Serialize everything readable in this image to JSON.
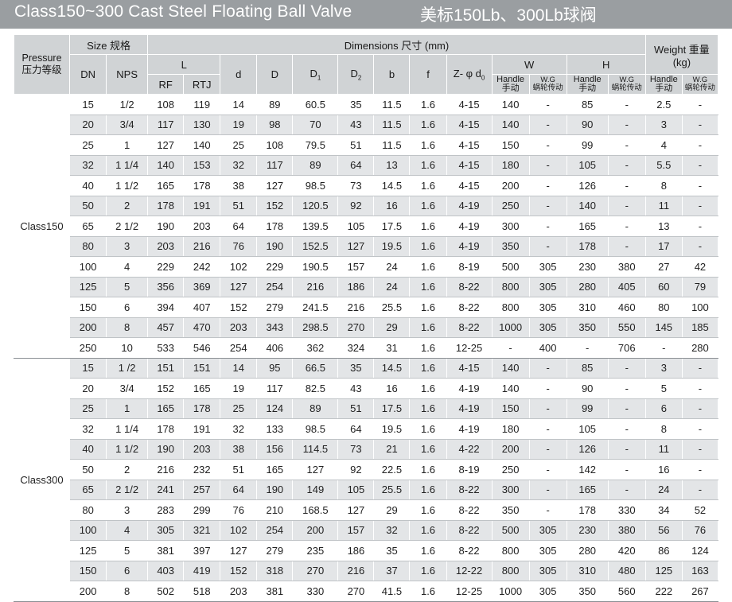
{
  "title": {
    "en": "Class150~300 Cast Steel Floating Ball Valve",
    "cn": "美标150Lb、300Lb球阀"
  },
  "headers": {
    "pressure_en": "Pressure",
    "pressure_cn": "压力等级",
    "size": "Size 规格",
    "dimensions": "Dimensions 尺寸 (mm)",
    "weight": "Weight 重量",
    "weight_unit": "(kg)",
    "dn": "DN",
    "nps": "NPS",
    "L": "L",
    "d": "d",
    "D": "D",
    "D1": "D",
    "D1_sub": "1",
    "D2": "D",
    "D2_sub": "2",
    "b": "b",
    "f": "f",
    "zphi": "Z- φ  d",
    "zphi_sub": "0",
    "W": "W",
    "H": "H",
    "rf": "RF",
    "rtj": "RTJ",
    "handle_en": "Handle",
    "handle_cn": "手动",
    "wg_en": "W.G",
    "wg_cn": "蜗轮传动"
  },
  "groups": [
    {
      "label": "Class150",
      "rows": [
        [
          "15",
          "1/2",
          "108",
          "119",
          "14",
          "89",
          "60.5",
          "35",
          "11.5",
          "1.6",
          "4-15",
          "140",
          "-",
          "85",
          "-",
          "2.5",
          "-"
        ],
        [
          "20",
          "3/4",
          "117",
          "130",
          "19",
          "98",
          "70",
          "43",
          "11.5",
          "1.6",
          "4-15",
          "140",
          "-",
          "90",
          "-",
          "3",
          "-"
        ],
        [
          "25",
          "1",
          "127",
          "140",
          "25",
          "108",
          "79.5",
          "51",
          "11.5",
          "1.6",
          "4-15",
          "150",
          "-",
          "99",
          "-",
          "4",
          "-"
        ],
        [
          "32",
          "1  1/4",
          "140",
          "153",
          "32",
          "117",
          "89",
          "64",
          "13",
          "1.6",
          "4-15",
          "180",
          "-",
          "105",
          "-",
          "5.5",
          "-"
        ],
        [
          "40",
          "1  1/2",
          "165",
          "178",
          "38",
          "127",
          "98.5",
          "73",
          "14.5",
          "1.6",
          "4-15",
          "200",
          "-",
          "126",
          "-",
          "8",
          "-"
        ],
        [
          "50",
          "2",
          "178",
          "191",
          "51",
          "152",
          "120.5",
          "92",
          "16",
          "1.6",
          "4-19",
          "250",
          "-",
          "140",
          "-",
          "11",
          "-"
        ],
        [
          "65",
          "2  1/2",
          "190",
          "203",
          "64",
          "178",
          "139.5",
          "105",
          "17.5",
          "1.6",
          "4-19",
          "300",
          "-",
          "165",
          "-",
          "13",
          "-"
        ],
        [
          "80",
          "3",
          "203",
          "216",
          "76",
          "190",
          "152.5",
          "127",
          "19.5",
          "1.6",
          "4-19",
          "350",
          "-",
          "178",
          "-",
          "17",
          "-"
        ],
        [
          "100",
          "4",
          "229",
          "242",
          "102",
          "229",
          "190.5",
          "157",
          "24",
          "1.6",
          "8-19",
          "500",
          "305",
          "230",
          "380",
          "27",
          "42"
        ],
        [
          "125",
          "5",
          "356",
          "369",
          "127",
          "254",
          "216",
          "186",
          "24",
          "1.6",
          "8-22",
          "800",
          "305",
          "280",
          "405",
          "60",
          "79"
        ],
        [
          "150",
          "6",
          "394",
          "407",
          "152",
          "279",
          "241.5",
          "216",
          "25.5",
          "1.6",
          "8-22",
          "800",
          "305",
          "310",
          "460",
          "80",
          "100"
        ],
        [
          "200",
          "8",
          "457",
          "470",
          "203",
          "343",
          "298.5",
          "270",
          "29",
          "1.6",
          "8-22",
          "1000",
          "305",
          "350",
          "550",
          "145",
          "185"
        ],
        [
          "250",
          "10",
          "533",
          "546",
          "254",
          "406",
          "362",
          "324",
          "31",
          "1.6",
          "12-25",
          "-",
          "400",
          "-",
          "706",
          "-",
          "280"
        ]
      ]
    },
    {
      "label": "Class300",
      "rows": [
        [
          "15",
          "1 /2",
          "151",
          "151",
          "14",
          "95",
          "66.5",
          "35",
          "14.5",
          "1.6",
          "4-15",
          "140",
          "-",
          "85",
          "-",
          "3",
          "-"
        ],
        [
          "20",
          "3/4",
          "152",
          "165",
          "19",
          "117",
          "82.5",
          "43",
          "16",
          "1.6",
          "4-19",
          "140",
          "-",
          "90",
          "-",
          "5",
          "-"
        ],
        [
          "25",
          "1",
          "165",
          "178",
          "25",
          "124",
          "89",
          "51",
          "17.5",
          "1.6",
          "4-19",
          "150",
          "-",
          "99",
          "-",
          "6",
          "-"
        ],
        [
          "32",
          "1  1/4",
          "178",
          "191",
          "32",
          "133",
          "98.5",
          "64",
          "19.5",
          "1.6",
          "4-19",
          "180",
          "-",
          "105",
          "-",
          "8",
          "-"
        ],
        [
          "40",
          "1  1/2",
          "190",
          "203",
          "38",
          "156",
          "114.5",
          "73",
          "21",
          "1.6",
          "4-22",
          "200",
          "-",
          "126",
          "-",
          "11",
          "-"
        ],
        [
          "50",
          "2",
          "216",
          "232",
          "51",
          "165",
          "127",
          "92",
          "22.5",
          "1.6",
          "8-19",
          "250",
          "-",
          "142",
          "-",
          "16",
          "-"
        ],
        [
          "65",
          "2  1/2",
          "241",
          "257",
          "64",
          "190",
          "149",
          "105",
          "25.5",
          "1.6",
          "8-22",
          "300",
          "-",
          "165",
          "-",
          "24",
          "-"
        ],
        [
          "80",
          "3",
          "283",
          "299",
          "76",
          "210",
          "168.5",
          "127",
          "29",
          "1.6",
          "8-22",
          "350",
          "-",
          "178",
          "330",
          "34",
          "52"
        ],
        [
          "100",
          "4",
          "305",
          "321",
          "102",
          "254",
          "200",
          "157",
          "32",
          "1.6",
          "8-22",
          "500",
          "305",
          "230",
          "380",
          "56",
          "76"
        ],
        [
          "125",
          "5",
          "381",
          "397",
          "127",
          "279",
          "235",
          "186",
          "35",
          "1.6",
          "8-22",
          "800",
          "305",
          "280",
          "420",
          "86",
          "124"
        ],
        [
          "150",
          "6",
          "403",
          "419",
          "152",
          "318",
          "270",
          "216",
          "37",
          "1.6",
          "12-22",
          "800",
          "305",
          "310",
          "480",
          "125",
          "163"
        ],
        [
          "200",
          "8",
          "502",
          "518",
          "203",
          "381",
          "330",
          "270",
          "41.5",
          "1.6",
          "12-25",
          "1000",
          "305",
          "350",
          "560",
          "222",
          "267"
        ]
      ]
    }
  ]
}
